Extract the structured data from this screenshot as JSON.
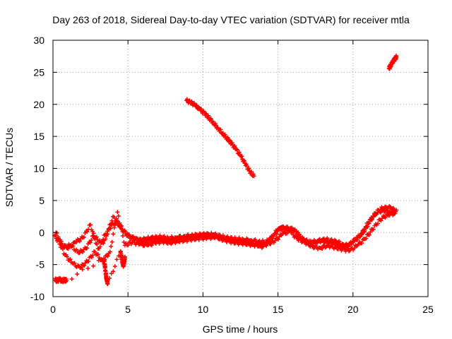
{
  "chart_data": {
    "type": "scatter",
    "title": "Day 263 of 2018, Sidereal Day-to-day VTEC variation (SDTVAR) for receiver mtla",
    "xlabel": "GPS time / hours",
    "ylabel": "SDTVAR / TECUs",
    "xlim": [
      0,
      25
    ],
    "ylim": [
      -10,
      30
    ],
    "xticks": [
      "0",
      "5",
      "10",
      "15",
      "20",
      "25"
    ],
    "yticks": [
      "-10",
      "-5",
      "0",
      "5",
      "10",
      "15",
      "20",
      "25",
      "30"
    ],
    "grid": true,
    "marker": "plus",
    "color": "#ff0000",
    "series": [
      {
        "name": "low-offset-track-a",
        "x": [
          0.1,
          0.5,
          1.0,
          1.5,
          2.0,
          2.5,
          3.0,
          3.5,
          4.0,
          4.5,
          5.0,
          5.5,
          6.0,
          6.5,
          7.0,
          7.5,
          8.0,
          8.5,
          9.0,
          9.5,
          10.0,
          10.5,
          11.0,
          11.5,
          12.0,
          12.5,
          13.0,
          13.5,
          14.0,
          14.5,
          15.0,
          15.5,
          16.0,
          16.5,
          17.0,
          17.5,
          18.0,
          18.5,
          19.0,
          19.5,
          20.0,
          20.5,
          21.0,
          21.5,
          22.0,
          22.5,
          22.9
        ],
        "y": [
          -0.5,
          -1.8,
          -2.5,
          -1.5,
          -0.8,
          1.2,
          -2.5,
          -1.0,
          2.5,
          1.0,
          -0.5,
          -1.0,
          -1.5,
          -1.2,
          -1.0,
          -1.3,
          -1.0,
          -0.9,
          -0.7,
          -0.6,
          -0.4,
          -0.5,
          -0.8,
          -1.2,
          -1.3,
          -1.4,
          -1.6,
          -1.8,
          -2.2,
          -1.0,
          0.5,
          0.7,
          0.5,
          -0.8,
          -1.7,
          -1.5,
          -1.0,
          -1.2,
          -1.5,
          -2.3,
          -1.5,
          -0.5,
          1.5,
          3.0,
          3.5,
          3.2,
          3.5
        ]
      },
      {
        "name": "low-offset-track-b",
        "x": [
          0.3,
          0.8,
          1.3,
          1.8,
          2.3,
          2.8,
          3.3,
          3.8,
          4.3,
          4.8,
          5.3,
          5.8,
          6.3,
          6.8,
          7.3,
          7.8,
          8.3,
          8.8,
          9.3,
          9.8,
          10.3,
          10.8,
          11.3,
          11.8,
          12.3,
          12.8,
          13.3,
          13.8,
          14.3,
          14.8,
          15.3,
          15.8,
          16.3,
          16.8,
          17.3,
          17.8,
          18.3,
          18.8,
          19.3,
          19.8,
          20.3,
          20.8,
          21.3,
          21.8,
          22.3,
          22.8
        ],
        "y": [
          -1.0,
          -3.5,
          -4.8,
          -5.5,
          -4.5,
          -3.0,
          -4.5,
          -3.0,
          3.2,
          -2.0,
          -1.5,
          -1.8,
          -2.0,
          -1.6,
          -1.4,
          -1.6,
          -1.3,
          -1.2,
          -1.0,
          -0.9,
          -0.8,
          -0.7,
          -1.0,
          -1.4,
          -1.6,
          -1.7,
          -1.9,
          -2.0,
          -1.8,
          -1.3,
          -0.2,
          0.2,
          -1.0,
          -1.5,
          -2.2,
          -2.4,
          -2.0,
          -2.3,
          -2.6,
          -2.8,
          -2.0,
          -1.0,
          0.5,
          2.0,
          2.8,
          3.0
        ]
      },
      {
        "name": "low-offset-track-c",
        "x": [
          0.2,
          0.7,
          1.2,
          1.7,
          2.2,
          2.7,
          3.2,
          3.7,
          4.2,
          4.7,
          5.2,
          5.7,
          6.2,
          6.7,
          7.2,
          7.7,
          8.2,
          8.7,
          9.2,
          9.7,
          10.2,
          10.7,
          11.2,
          11.7,
          12.2,
          12.7,
          13.2,
          13.7,
          14.2,
          14.7,
          15.2,
          15.7,
          16.2,
          16.7,
          17.2,
          17.7,
          18.2,
          18.7,
          19.2,
          19.7,
          20.2,
          20.7,
          21.2,
          21.7,
          22.2,
          22.7
        ],
        "y": [
          0.0,
          -2.2,
          -2.0,
          -3.2,
          -2.5,
          -0.5,
          -1.5,
          0.5,
          1.8,
          0.2,
          -0.8,
          -1.2,
          -1.0,
          -0.8,
          -0.7,
          -0.9,
          -0.8,
          -0.6,
          -0.5,
          -0.4,
          -0.3,
          -0.3,
          -0.6,
          -0.9,
          -1.0,
          -1.1,
          -1.2,
          -1.4,
          -1.5,
          -0.6,
          0.8,
          0.6,
          0.2,
          -1.2,
          -1.5,
          -1.3,
          -1.4,
          -1.7,
          -2.0,
          -2.0,
          -1.0,
          0.0,
          2.0,
          3.5,
          4.0,
          3.8
        ]
      },
      {
        "name": "low-offset-track-d",
        "x": [
          0.15,
          0.3,
          0.45,
          0.6,
          0.75,
          0.9,
          3.4,
          3.45,
          3.5,
          3.55,
          3.6,
          3.65,
          4.5,
          4.55,
          4.6,
          4.65,
          4.7,
          4.75,
          4.8
        ],
        "y": [
          -7.4,
          -7.5,
          -7.3,
          -7.6,
          -7.4,
          -7.5,
          -4.0,
          -5.0,
          -6.0,
          -7.0,
          -7.5,
          -8.0,
          -3.0,
          -3.6,
          -4.2,
          -4.8,
          -5.2,
          -4.5,
          -3.8
        ]
      },
      {
        "name": "high-offset-arc-1",
        "x": [
          8.9,
          9.2,
          9.5,
          9.8,
          10.1,
          10.4,
          10.7,
          11.0,
          11.3,
          11.6,
          11.9,
          12.2,
          12.5,
          12.8,
          13.1,
          13.4
        ],
        "y": [
          20.6,
          20.3,
          19.8,
          19.2,
          18.6,
          17.9,
          17.1,
          16.3,
          15.5,
          14.7,
          13.9,
          13.0,
          12.0,
          10.8,
          9.6,
          8.8
        ]
      },
      {
        "name": "high-offset-arc-2",
        "x": [
          22.4,
          22.5,
          22.6,
          22.7,
          22.8,
          22.9
        ],
        "y": [
          25.6,
          26.0,
          26.4,
          26.8,
          27.1,
          27.4
        ]
      }
    ]
  }
}
